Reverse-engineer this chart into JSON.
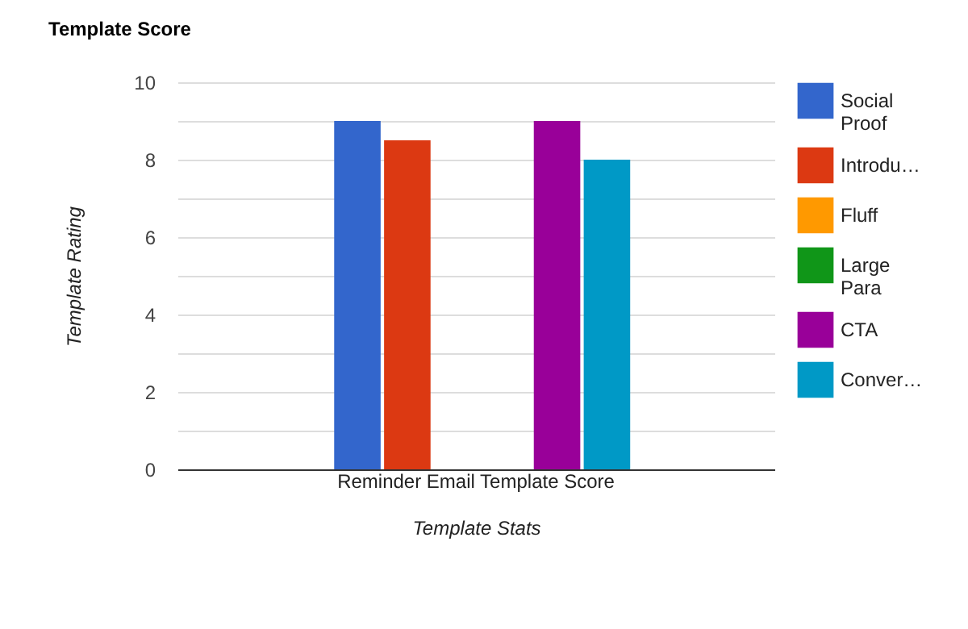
{
  "chart_data": {
    "type": "bar",
    "title": "Template Score",
    "xlabel": "Template Stats",
    "ylabel": "Template Rating",
    "categories": [
      "Reminder Email Template Score"
    ],
    "series": [
      {
        "name": "Social Proof",
        "color": "#3366cc",
        "values": [
          9
        ]
      },
      {
        "name": "Introdu…",
        "color": "#dc3912",
        "values": [
          8.5
        ]
      },
      {
        "name": "Fluff",
        "color": "#ff9900",
        "values": [
          0
        ]
      },
      {
        "name": "Large Para",
        "color": "#109618",
        "values": [
          0
        ]
      },
      {
        "name": "CTA",
        "color": "#990099",
        "values": [
          9
        ]
      },
      {
        "name": "Conver…",
        "color": "#0099c6",
        "values": [
          8
        ]
      }
    ],
    "ylim": [
      0,
      10
    ],
    "yticks": [
      0,
      {
        "value": 1,
        "label": null
      },
      2,
      {
        "value": 3,
        "label": null
      },
      4,
      {
        "value": 5,
        "label": null
      },
      6,
      {
        "value": 7,
        "label": null
      },
      8,
      {
        "value": 9,
        "label": null
      },
      10
    ],
    "grid": "y",
    "legend": "right"
  }
}
